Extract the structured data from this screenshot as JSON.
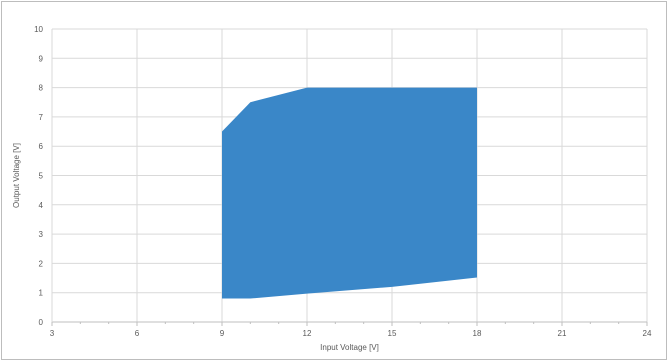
{
  "chart_data": {
    "type": "area",
    "xlabel": "Input Voltage [V]",
    "ylabel": "Output Voltage [V]",
    "xlim": [
      3,
      24
    ],
    "ylim": [
      0,
      10
    ],
    "x_ticks": [
      "3",
      "6",
      "9",
      "12",
      "15",
      "18",
      "21",
      "24"
    ],
    "y_ticks": [
      "0",
      "1",
      "2",
      "3",
      "4",
      "5",
      "6",
      "7",
      "8",
      "9",
      "10"
    ],
    "grid": true,
    "legend": "none",
    "fill_color": "#3a87c8",
    "grid_color": "#d9d9d9",
    "series": [
      {
        "upper_boundary": [
          {
            "x": 9,
            "y": 6.5
          },
          {
            "x": 10,
            "y": 7.5
          },
          {
            "x": 12,
            "y": 8.0
          },
          {
            "x": 18,
            "y": 8.0
          }
        ],
        "lower_boundary": [
          {
            "x": 9,
            "y": 0.8
          },
          {
            "x": 10,
            "y": 0.8
          },
          {
            "x": 12,
            "y": 0.97
          },
          {
            "x": 15,
            "y": 1.2
          },
          {
            "x": 18,
            "y": 1.52
          }
        ]
      }
    ]
  }
}
